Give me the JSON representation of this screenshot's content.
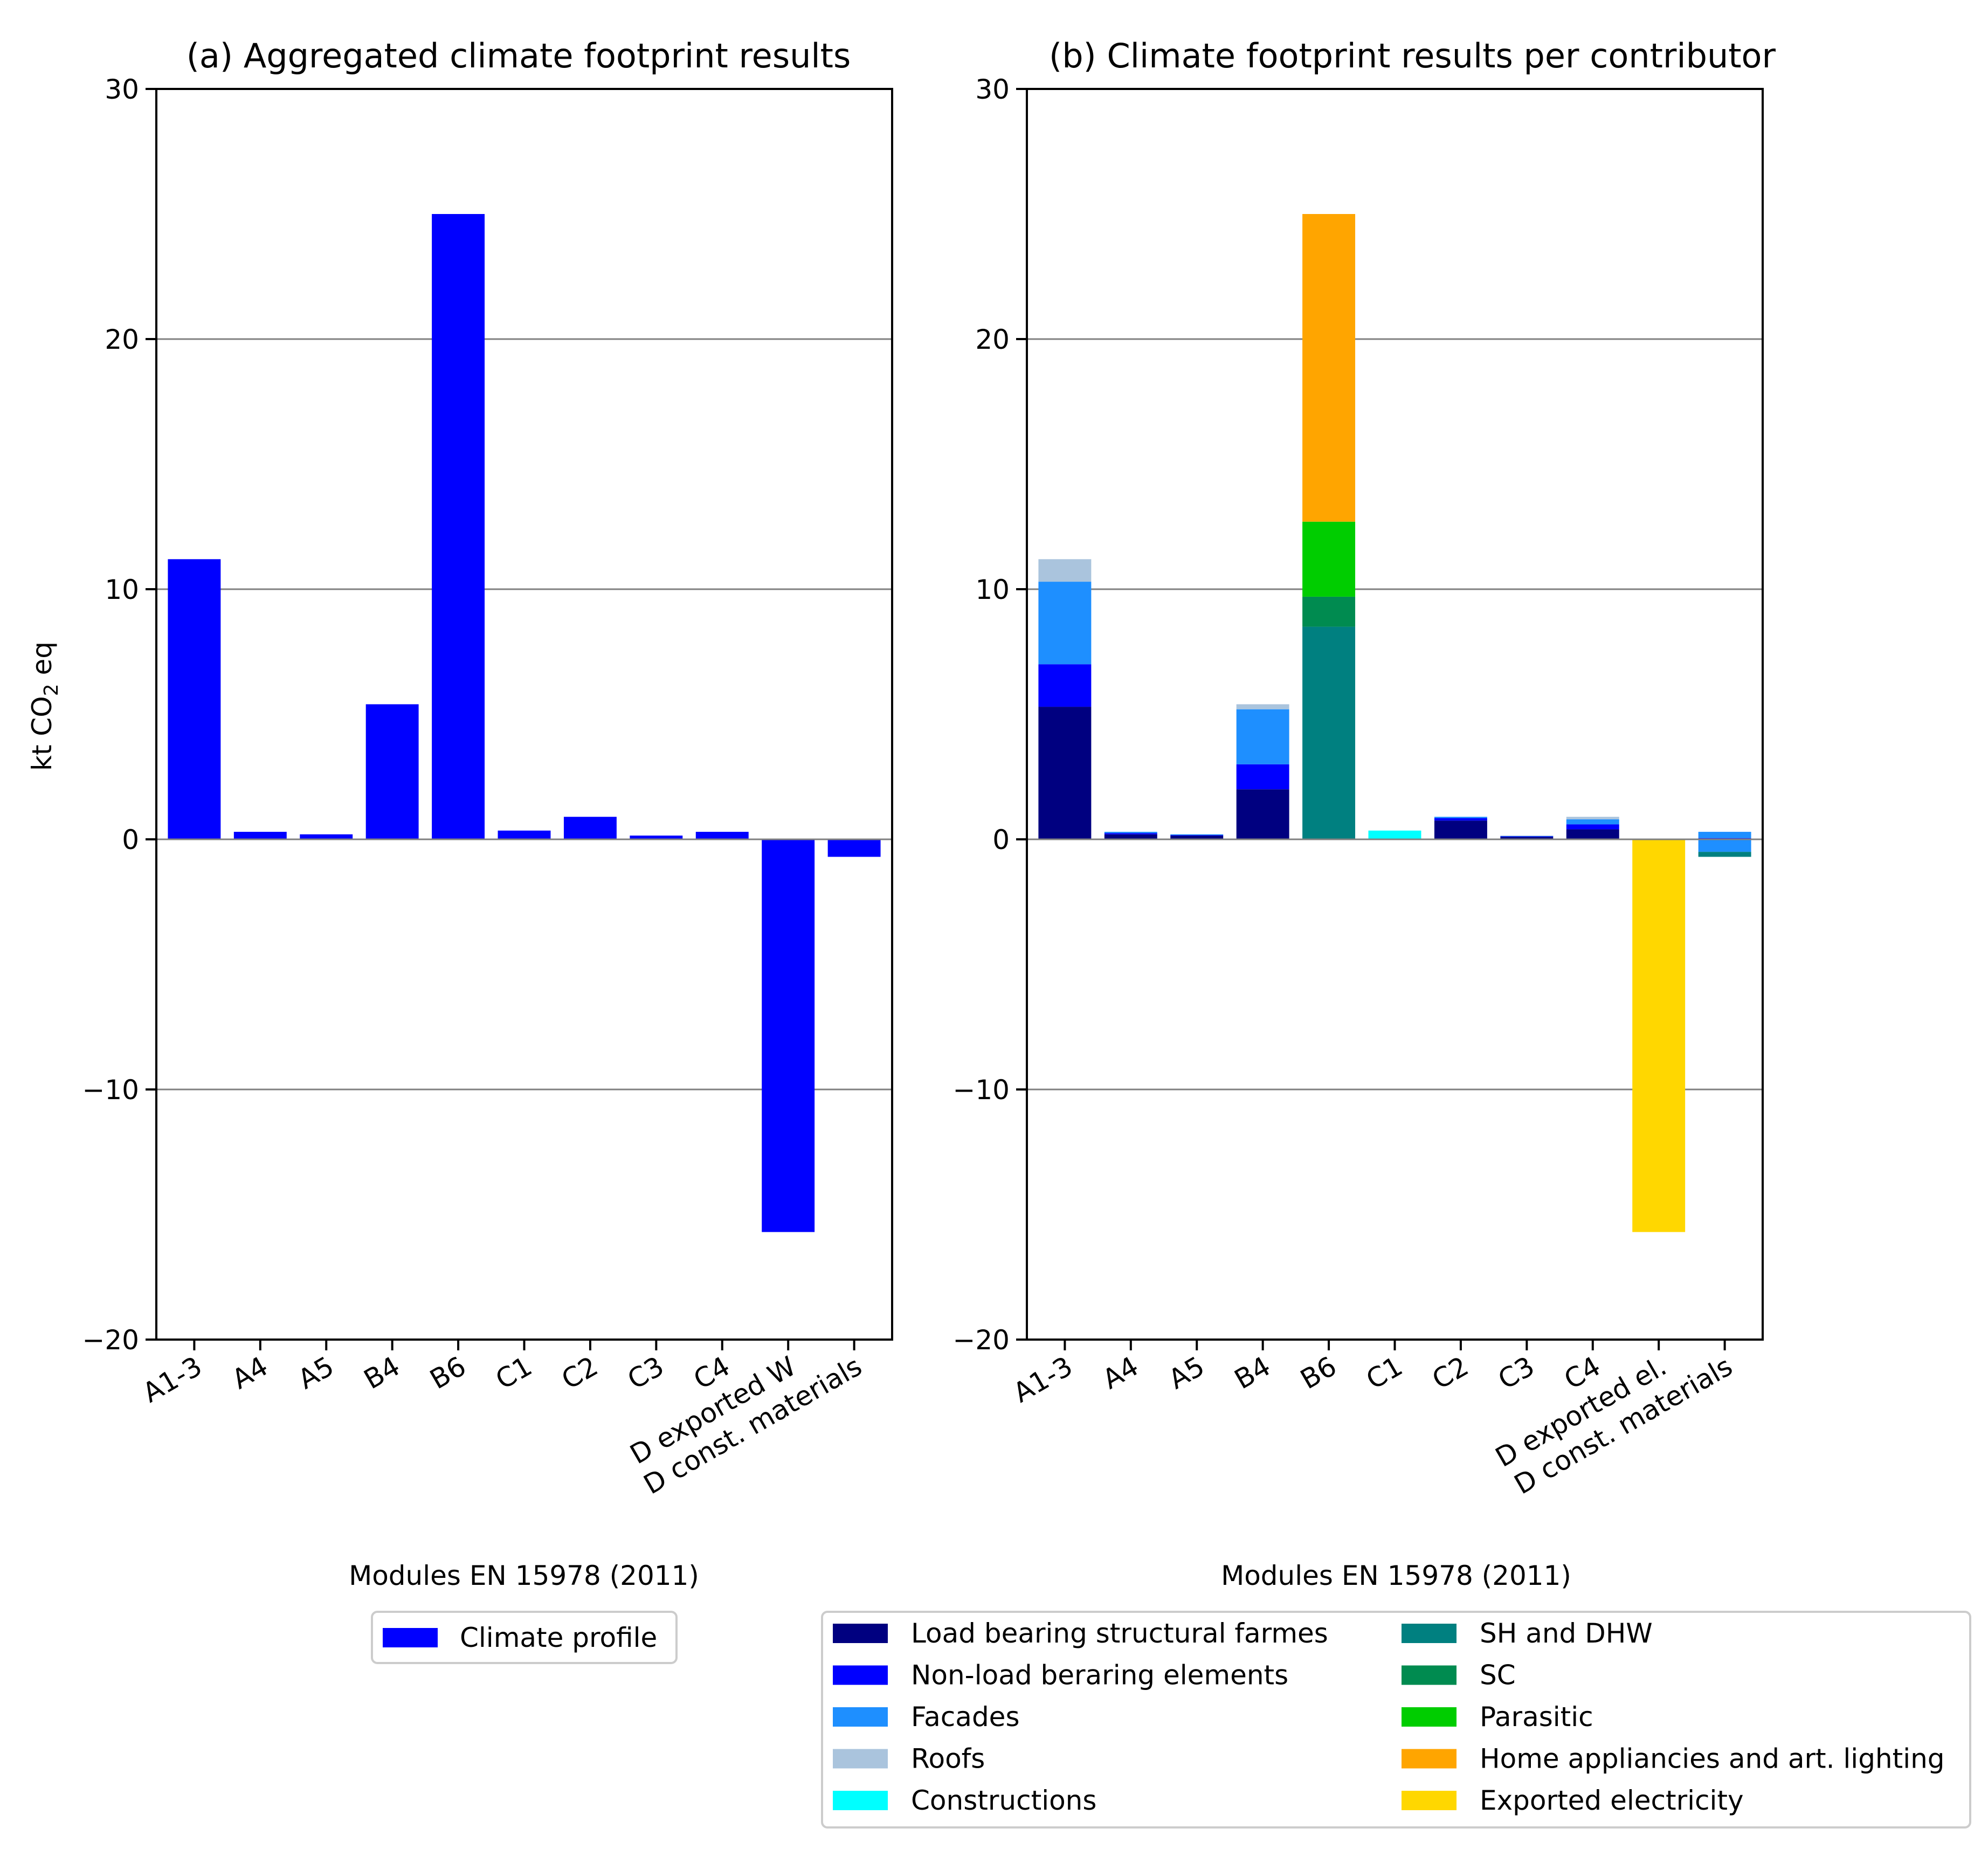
{
  "chart_data": [
    {
      "type": "bar",
      "title": "(a) Aggregated climate footprint results",
      "xlabel": "Modules EN 15978 (2011)",
      "ylabel": "kt CO₂ eq",
      "ylabel_main": "kt CO",
      "ylabel_sub": "2",
      "ylabel_tail": " eq",
      "ylim": [
        -20,
        30
      ],
      "yticks": [
        -20,
        -10,
        0,
        10,
        20,
        30
      ],
      "ytick_labels": [
        "−20",
        "−10",
        "0",
        "10",
        "20",
        "30"
      ],
      "grid": "horizontal",
      "legend_position": "below",
      "categories": [
        "A1-3",
        "A4",
        "A5",
        "B4",
        "B6",
        "C1",
        "C2",
        "C3",
        "C4",
        "D exported W",
        "D const. materials"
      ],
      "series": [
        {
          "name": "Climate profile",
          "color": "#0000ff",
          "values": [
            11.2,
            0.3,
            0.2,
            5.4,
            25.0,
            0.35,
            0.9,
            0.15,
            0.3,
            -15.7,
            -0.7
          ]
        }
      ]
    },
    {
      "type": "bar",
      "stacked": true,
      "title": "(b) Climate footprint results per contributor",
      "xlabel": "Modules EN 15978 (2011)",
      "ylim": [
        -20,
        30
      ],
      "yticks": [
        -20,
        -10,
        0,
        10,
        20,
        30
      ],
      "ytick_labels": [
        "−20",
        "−10",
        "0",
        "10",
        "20",
        "30"
      ],
      "grid": "horizontal",
      "legend_position": "below",
      "categories": [
        "A1-3",
        "A4",
        "A5",
        "B4",
        "B6",
        "C1",
        "C2",
        "C3",
        "C4",
        "D exported el.",
        "D const. materials"
      ],
      "series": [
        {
          "name": "Load bearing structural farmes",
          "color": "#000080",
          "values": [
            5.3,
            0.2,
            0.15,
            2.0,
            0,
            0,
            0.75,
            0.1,
            0.4,
            0,
            0
          ]
        },
        {
          "name": "Non-load beraring elements",
          "color": "#0000ff",
          "values": [
            1.7,
            0.05,
            0.02,
            1.0,
            0,
            0,
            0.1,
            0.02,
            0.2,
            0,
            0.05
          ]
        },
        {
          "name": "Facades",
          "color": "#1e8fff",
          "values": [
            3.3,
            0.05,
            0.03,
            2.2,
            0,
            0,
            0.05,
            0.02,
            0.2,
            0,
            0.25
          ]
        },
        {
          "name": "Roofs",
          "color": "#aac4dd",
          "values": [
            0.9,
            0,
            0,
            0.2,
            0,
            0,
            0,
            0.01,
            0.1,
            0,
            0
          ]
        },
        {
          "name": "Constructions",
          "color": "#00ffff",
          "values": [
            0,
            0,
            0,
            0,
            0,
            0.35,
            0,
            0,
            0,
            0,
            0
          ]
        },
        {
          "name": "SH and DHW",
          "color": "#008080",
          "values": [
            0,
            0,
            0,
            0,
            8.5,
            0,
            0,
            0,
            0,
            0,
            0
          ]
        },
        {
          "name": "SC",
          "color": "#008b50",
          "values": [
            0,
            0,
            0,
            0,
            1.2,
            0,
            0,
            0,
            0,
            0,
            0
          ]
        },
        {
          "name": "Parasitic",
          "color": "#00cd00",
          "values": [
            0,
            0,
            0,
            0,
            3.0,
            0,
            0,
            0,
            0,
            0,
            0
          ]
        },
        {
          "name": "Home appliancies and art. lighting",
          "color": "#ffa500",
          "values": [
            0,
            0,
            0,
            0,
            12.3,
            0,
            0,
            0,
            0,
            0,
            0
          ]
        },
        {
          "name": "Exported electricity",
          "color": "#ffd700",
          "values": [
            0,
            0,
            0,
            0,
            0,
            0,
            0,
            0,
            0,
            -15.7,
            0
          ]
        }
      ],
      "negative_parts_const_materials": [
        {
          "name": "Facades",
          "value": -0.5
        },
        {
          "name": "SH and DHW",
          "value": -0.2
        }
      ]
    }
  ],
  "legend_a": {
    "label": "Climate profile",
    "color": "#0000ff"
  }
}
